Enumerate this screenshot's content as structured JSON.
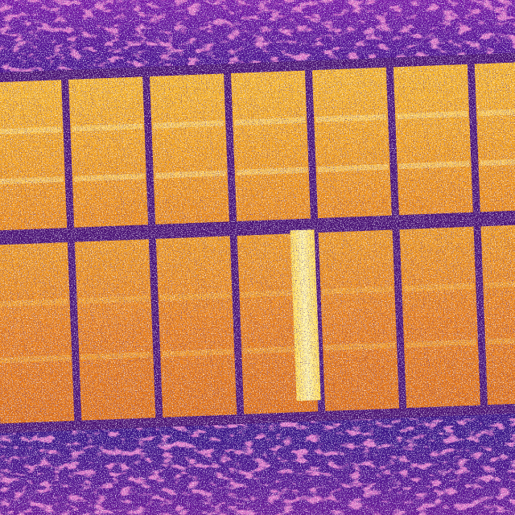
{
  "scene": {
    "palette": "ironbow",
    "colors": {
      "background_dark": "#2a0e6b",
      "background_mid": "#6a1aa0",
      "background_hot": "#b42a8c",
      "frame": "#4a1275",
      "panel_warm": "#e8801c",
      "panel_warmer": "#f2a020",
      "panel_hot": "#ffd23a",
      "hotspot": "#fff6b0"
    },
    "panel_rows": 2,
    "panel_columns": 7,
    "hotspot_panels": [
      {
        "row": 1,
        "column": 3,
        "level": 1.0
      }
    ]
  }
}
